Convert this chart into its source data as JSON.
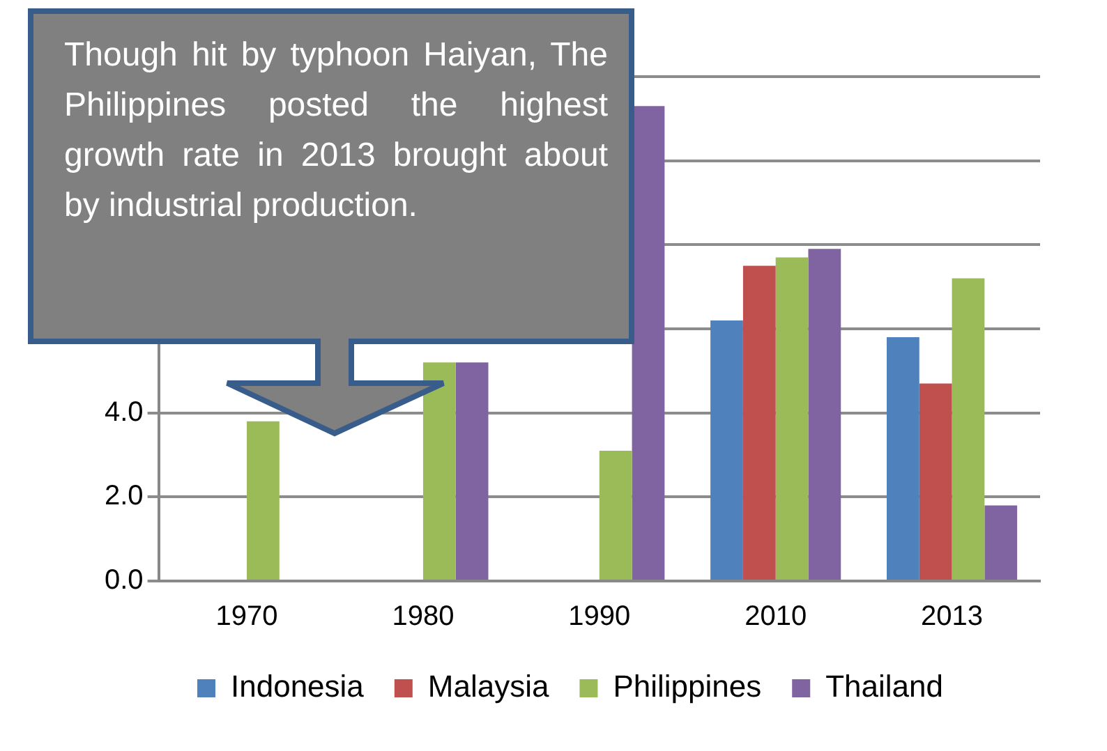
{
  "chart_data": {
    "type": "bar",
    "categories": [
      "1970",
      "1980",
      "1990",
      "2010",
      "2013"
    ],
    "series": [
      {
        "name": "Indonesia",
        "color": "#4f81bd",
        "values": [
          null,
          null,
          null,
          6.2,
          5.8
        ]
      },
      {
        "name": "Malaysia",
        "color": "#c0504d",
        "values": [
          null,
          null,
          null,
          7.5,
          4.7
        ]
      },
      {
        "name": "Philippines",
        "color": "#9bbb59",
        "values": [
          3.8,
          5.2,
          3.1,
          7.7,
          7.2
        ]
      },
      {
        "name": "Thailand",
        "color": "#8064a2",
        "values": [
          null,
          5.2,
          11.3,
          7.9,
          1.8
        ]
      }
    ],
    "ylim": [
      0,
      12
    ],
    "yticks": [
      {
        "value": 0,
        "label": "0.0"
      },
      {
        "value": 2,
        "label": "2.0"
      },
      {
        "value": 4,
        "label": "4.0"
      },
      {
        "value": 6,
        "label": null
      },
      {
        "value": 8,
        "label": null
      },
      {
        "value": 10,
        "label": null
      },
      {
        "value": 12,
        "label": null
      }
    ],
    "grid": "y",
    "legend": "bottom",
    "annotations": [
      "Though hit by typhoon Haiyan, The Philippines posted the highest growth rate in 2013 brought about by industrial production."
    ]
  }
}
